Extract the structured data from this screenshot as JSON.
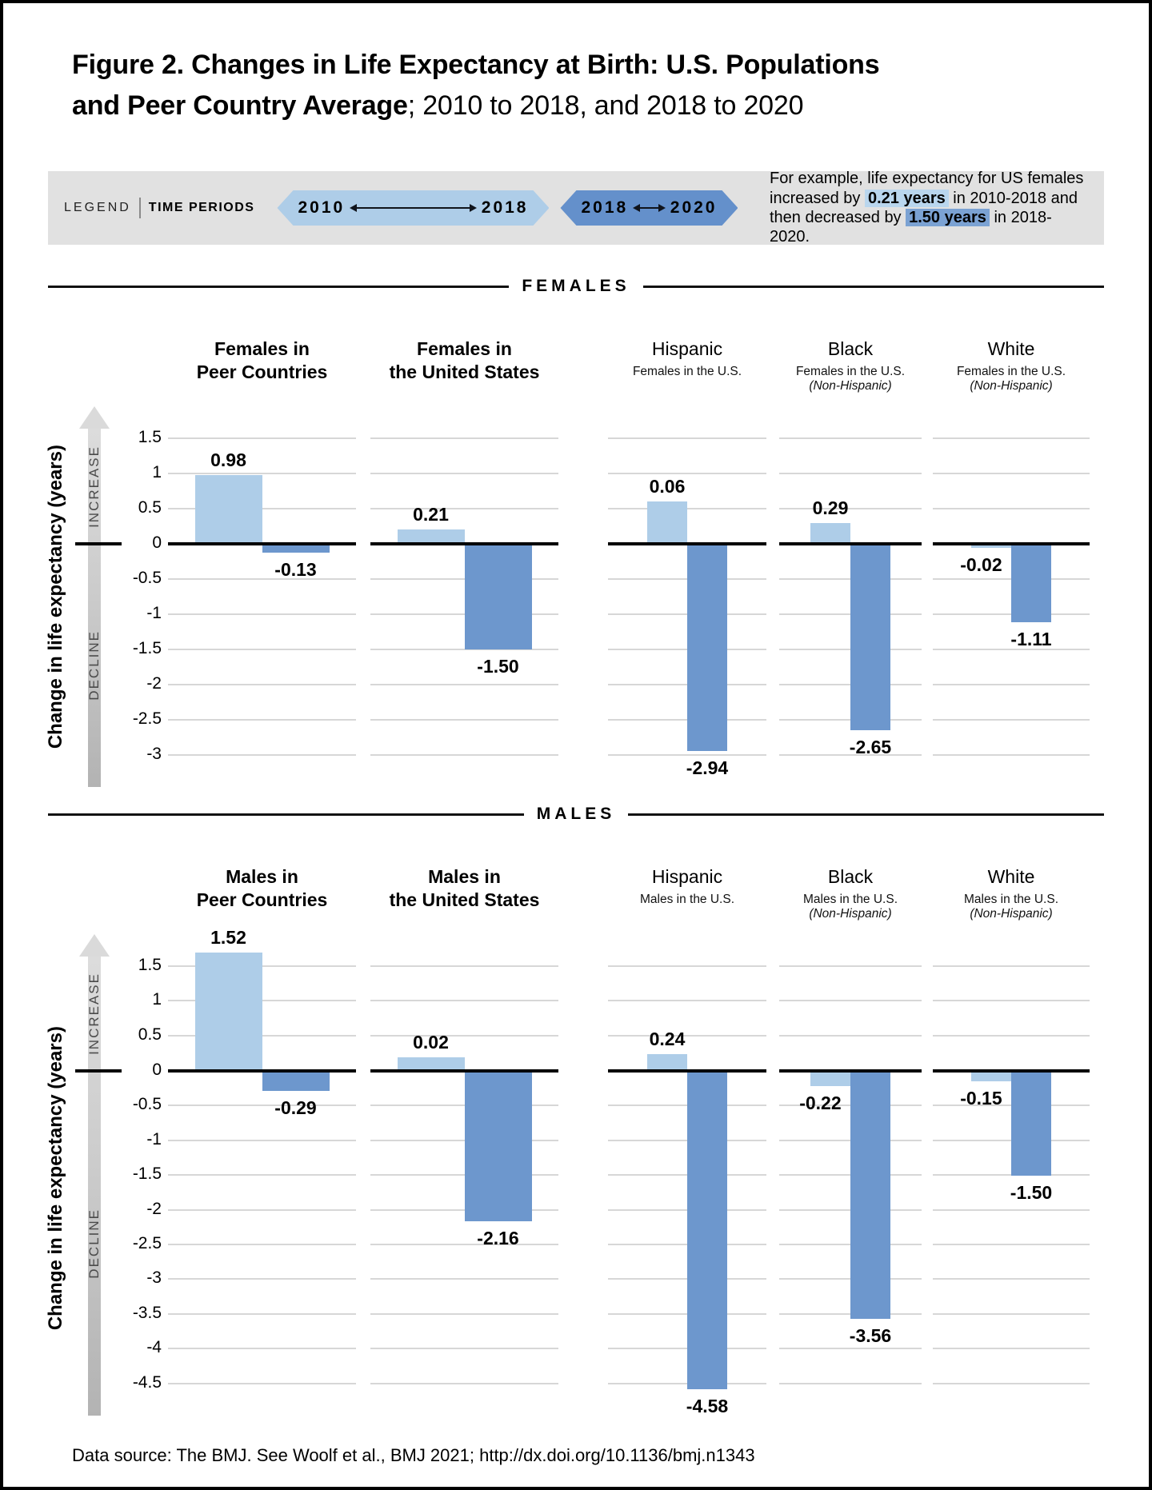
{
  "figure_title": {
    "line1": "Figure 2. Changes in Life Expectancy at Birth: U.S. Populations",
    "line2_bold": "and Peer Country Average",
    "line2_rest": "; 2010 to 2018, and 2018 to 2020"
  },
  "legend": {
    "label": "LEGEND",
    "time_periods_label": "TIME PERIODS",
    "periods": [
      {
        "start": "2010",
        "end": "2018",
        "color": "#aecde8"
      },
      {
        "start": "2018",
        "end": "2020",
        "color": "#6490cb"
      }
    ],
    "note_parts": [
      {
        "t": "For example, life expectancy for US females increased by ",
        "hl": ""
      },
      {
        "t": "0.21 years",
        "hl": "light"
      },
      {
        "t": " in 2010-2018 and ",
        "hl": ""
      },
      {
        "t": "then decreased by ",
        "hl": ""
      },
      {
        "t": "1.50 years",
        "hl": "dark"
      },
      {
        "t": " in 2018-2020.",
        "hl": ""
      }
    ]
  },
  "colors": {
    "light": "#aecde8",
    "dark": "#6d97cd",
    "hl_light": "#b9d6ee",
    "hl_dark": "#7ba2d3",
    "grid": "#d7d7d7",
    "band": "#e1e1e1"
  },
  "axis": {
    "ylabel": "Change in life expectancy (years)",
    "increase": "INCREASE",
    "decline": "DECLINE"
  },
  "source": "Data source: The BMJ. See Woolf et al., BMJ 2021; http://dx.doi.org/10.1136/bmj.n1343",
  "chart_data": [
    {
      "type": "bar",
      "section": "FEMALES",
      "ylabel": "Change in life expectancy (years)",
      "series": [
        "2010-2018",
        "2018-2020"
      ],
      "yticks": [
        "1.5",
        "1",
        "0.5",
        "0",
        "-0.5",
        "-1",
        "-1.5",
        "-2",
        "-2.5",
        "-3"
      ],
      "ylim": [
        1.75,
        -3.25
      ],
      "grid": true,
      "groups": [
        {
          "id": "peer-countries",
          "title_lines": [
            "Females in",
            "Peer Countries"
          ],
          "bold": true,
          "subtitle": null,
          "note": null,
          "values": [
            0.98,
            -0.13
          ],
          "labels": [
            "0.98",
            "-0.13"
          ],
          "drawn": [
            null,
            null
          ]
        },
        {
          "id": "united-states",
          "title_lines": [
            "Females in",
            "the United States"
          ],
          "bold": true,
          "subtitle": null,
          "note": null,
          "values": [
            0.21,
            -1.5
          ],
          "labels": [
            "0.21",
            "-1.50"
          ],
          "drawn": [
            null,
            null
          ]
        },
        {
          "id": "hispanic",
          "title_lines": [
            "Hispanic"
          ],
          "bold": false,
          "subtitle": "Females in the U.S.",
          "note": null,
          "values": [
            0.06,
            -2.94
          ],
          "labels": [
            "0.06",
            "-2.94"
          ],
          "drawn": [
            0.6,
            null
          ]
        },
        {
          "id": "black",
          "title_lines": [
            "Black"
          ],
          "bold": false,
          "subtitle": "Females in the U.S.",
          "note": "(Non-Hispanic)",
          "values": [
            0.29,
            -2.65
          ],
          "labels": [
            "0.29",
            "-2.65"
          ],
          "drawn": [
            null,
            null
          ]
        },
        {
          "id": "white",
          "title_lines": [
            "White"
          ],
          "bold": false,
          "subtitle": "Females in the U.S.",
          "note": "(Non-Hispanic)",
          "values": [
            -0.02,
            -1.11
          ],
          "labels": [
            "-0.02",
            "-1.11"
          ],
          "drawn": [
            -0.06,
            null
          ]
        }
      ]
    },
    {
      "type": "bar",
      "section": "MALES",
      "ylabel": "Change in life expectancy (years)",
      "series": [
        "2010-2018",
        "2018-2020"
      ],
      "yticks": [
        "1.5",
        "1",
        "0.5",
        "0",
        "-0.5",
        "-1",
        "-1.5",
        "-2",
        "-2.5",
        "-3",
        "-3.5",
        "-4",
        "-4.5"
      ],
      "ylim": [
        1.75,
        -4.86
      ],
      "grid": true,
      "groups": [
        {
          "id": "peer-countries",
          "title_lines": [
            "Males in",
            "Peer Countries"
          ],
          "bold": true,
          "subtitle": null,
          "note": null,
          "values": [
            1.52,
            -0.29
          ],
          "labels": [
            "1.52",
            "-0.29"
          ],
          "drawn": [
            1.7,
            null
          ]
        },
        {
          "id": "united-states",
          "title_lines": [
            "Males in",
            "the United States"
          ],
          "bold": true,
          "subtitle": null,
          "note": null,
          "values": [
            0.02,
            -2.16
          ],
          "labels": [
            "0.02",
            "-2.16"
          ],
          "drawn": [
            0.2,
            null
          ]
        },
        {
          "id": "hispanic",
          "title_lines": [
            "Hispanic"
          ],
          "bold": false,
          "subtitle": "Males in the U.S.",
          "note": null,
          "values": [
            0.24,
            -4.58
          ],
          "labels": [
            "0.24",
            "-4.58"
          ],
          "drawn": [
            null,
            null
          ]
        },
        {
          "id": "black",
          "title_lines": [
            "Black"
          ],
          "bold": false,
          "subtitle": "Males in the U.S.",
          "note": "(Non-Hispanic)",
          "values": [
            -0.22,
            -3.56
          ],
          "labels": [
            "-0.22",
            "-3.56"
          ],
          "drawn": [
            null,
            null
          ]
        },
        {
          "id": "white",
          "title_lines": [
            "White"
          ],
          "bold": false,
          "subtitle": "Males in the U.S.",
          "note": "(Non-Hispanic)",
          "values": [
            -0.15,
            -1.5
          ],
          "labels": [
            "-0.15",
            "-1.50"
          ],
          "drawn": [
            null,
            null
          ]
        }
      ]
    }
  ]
}
